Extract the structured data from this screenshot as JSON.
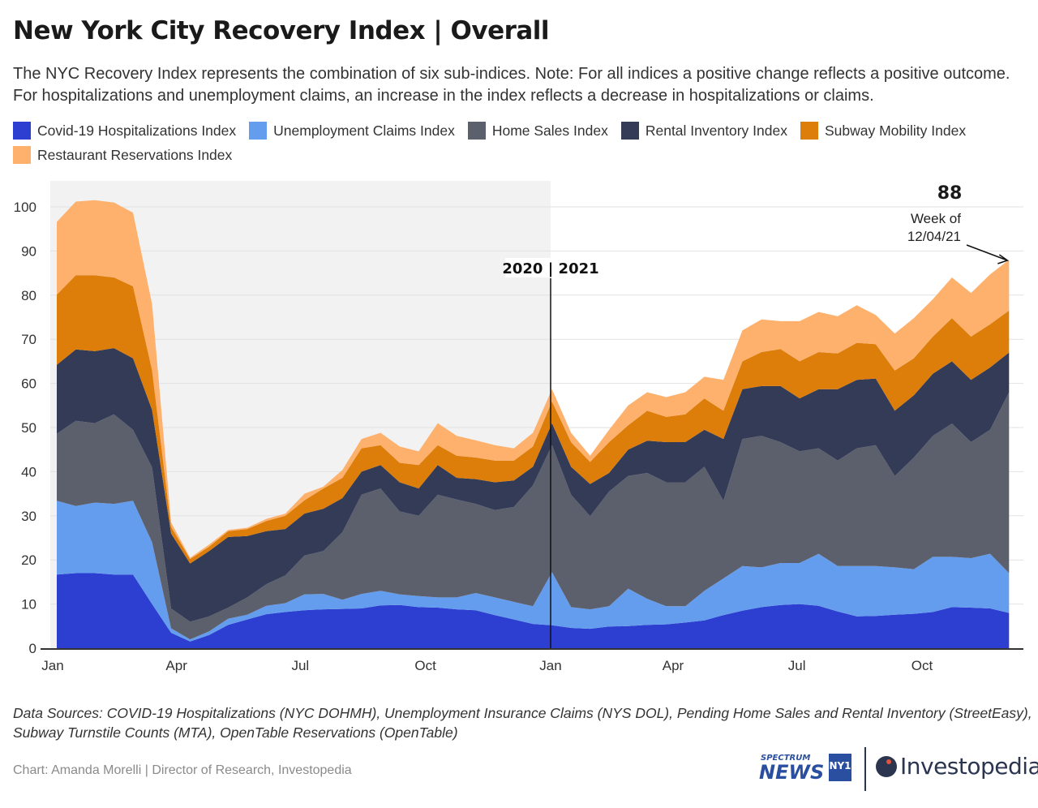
{
  "header": {
    "title": "New York City Recovery Index | Overall",
    "subtitle": "The NYC Recovery Index represents the combination of six sub-indices. Note: For all indices a positive change reflects a positive outcome. For hospitalizations and unemployment claims, an increase in the index reflects a decrease in hospitalizations or claims."
  },
  "legend": [
    {
      "label": "Covid-19 Hospitalizations Index",
      "color": "#2c3fd1"
    },
    {
      "label": "Unemployment Claims Index",
      "color": "#659dee"
    },
    {
      "label": "Home Sales Index",
      "color": "#5c5f6c"
    },
    {
      "label": "Rental Inventory Index",
      "color": "#333b57"
    },
    {
      "label": "Subway Mobility Index",
      "color": "#dd7d0a"
    },
    {
      "label": "Restaurant Reservations Index",
      "color": "#fdb16d"
    }
  ],
  "chart_data": {
    "type": "area",
    "stacked": true,
    "title": "New York City Recovery Index | Overall",
    "xlabel": "",
    "ylabel": "",
    "ylim": [
      0,
      105
    ],
    "y_ticks": [
      "0",
      "10",
      "20",
      "30",
      "40",
      "50",
      "60",
      "70",
      "80",
      "90",
      "100"
    ],
    "x_ticks": [
      {
        "label": "Jan",
        "date": "2020-01-01"
      },
      {
        "label": "Apr",
        "date": "2020-04-01"
      },
      {
        "label": "Jul",
        "date": "2020-07-01"
      },
      {
        "label": "Oct",
        "date": "2020-10-01"
      },
      {
        "label": "Jan",
        "date": "2021-01-01"
      },
      {
        "label": "Apr",
        "date": "2021-04-01"
      },
      {
        "label": "Jul",
        "date": "2021-07-01"
      },
      {
        "label": "Oct",
        "date": "2021-10-01"
      }
    ],
    "grid": "horizontal",
    "legend_position": "top",
    "shaded_period": {
      "start": "2020-01-01",
      "end": "2021-01-01",
      "color": "#f2f2f2"
    },
    "divider": {
      "date": "2021-01-01",
      "label": "2020 | 2021"
    },
    "annotation": {
      "value": "88",
      "text_line1": "Week of",
      "text_line2": "12/04/21",
      "date": "2021-12-04"
    },
    "x": [
      "2020-01-04",
      "2020-01-18",
      "2020-02-01",
      "2020-02-15",
      "2020-02-29",
      "2020-03-14",
      "2020-03-28",
      "2020-04-11",
      "2020-04-25",
      "2020-05-09",
      "2020-05-23",
      "2020-06-06",
      "2020-06-20",
      "2020-07-04",
      "2020-07-18",
      "2020-08-01",
      "2020-08-15",
      "2020-08-29",
      "2020-09-12",
      "2020-09-26",
      "2020-10-10",
      "2020-10-24",
      "2020-11-07",
      "2020-11-21",
      "2020-12-05",
      "2020-12-19",
      "2021-01-02",
      "2021-01-16",
      "2021-01-30",
      "2021-02-13",
      "2021-02-27",
      "2021-03-13",
      "2021-03-27",
      "2021-04-10",
      "2021-04-24",
      "2021-05-08",
      "2021-05-22",
      "2021-06-05",
      "2021-06-19",
      "2021-07-03",
      "2021-07-17",
      "2021-07-31",
      "2021-08-14",
      "2021-08-28",
      "2021-09-11",
      "2021-09-25",
      "2021-10-09",
      "2021-10-23",
      "2021-11-06",
      "2021-11-20",
      "2021-12-04"
    ],
    "series": [
      {
        "name": "Covid-19 Hospitalizations Index",
        "values": [
          16.7,
          17,
          17,
          16.7,
          16.7,
          10,
          3.5,
          1.5,
          3,
          5.3,
          6.5,
          7.7,
          8.2,
          8.6,
          8.8,
          8.9,
          9,
          9.7,
          9.8,
          9.3,
          9.2,
          8.8,
          8.6,
          7.5,
          6.5,
          5.5,
          5.2,
          4.6,
          4.4,
          4.9,
          5,
          5.3,
          5.4,
          5.8,
          6.3,
          7.5,
          8.5,
          9.3,
          9.8,
          10,
          9.6,
          8.3,
          7.2,
          7.3,
          7.6,
          7.8,
          8.2,
          9.3,
          9.2,
          9,
          8
        ]
      },
      {
        "name": "Unemployment Claims Index",
        "values": [
          16.7,
          15.2,
          16,
          16,
          16.7,
          14,
          1,
          0.5,
          0.8,
          1.4,
          1.1,
          1.9,
          2,
          3.6,
          3.5,
          2.1,
          3.3,
          3.3,
          2.4,
          2.5,
          2.3,
          2.7,
          3.9,
          4,
          4,
          4,
          12,
          4.7,
          4.4,
          4.6,
          8.5,
          5.9,
          4.1,
          3.7,
          6.7,
          8.3,
          10.1,
          9,
          9.5,
          9.3,
          11.8,
          10.3,
          11.4,
          11.3,
          10.7,
          10.1,
          12.5,
          11.4,
          11.2,
          12.4,
          9
        ]
      },
      {
        "name": "Home Sales Index",
        "values": [
          15.2,
          19.3,
          18,
          20.3,
          16.1,
          17,
          4.5,
          4,
          3.4,
          2.5,
          3.9,
          4.9,
          6.3,
          8.8,
          9.7,
          15.3,
          22.5,
          23.2,
          18.8,
          18.2,
          23.3,
          22.2,
          20.2,
          19.8,
          21.5,
          27.4,
          28.8,
          25.5,
          21.1,
          26,
          25.5,
          28.5,
          28.1,
          28.1,
          28.1,
          17.6,
          28.8,
          29.8,
          27.4,
          25.3,
          23.9,
          23.9,
          26.7,
          27.4,
          20.7,
          25.3,
          27.4,
          30.2,
          26.3,
          28.1,
          41
        ]
      },
      {
        "name": "Rental Inventory Index",
        "values": [
          15.6,
          16.2,
          16.3,
          15,
          16.2,
          13,
          17,
          13.2,
          14.8,
          16,
          13.9,
          12,
          10.5,
          9.5,
          9.6,
          7.7,
          5.2,
          5.3,
          6.6,
          6.2,
          6.7,
          4.9,
          5.6,
          6.3,
          6,
          4.2,
          5,
          6.3,
          7.3,
          4.2,
          6,
          7.3,
          9.1,
          9.1,
          8.4,
          14,
          11.3,
          11.3,
          12.7,
          12,
          13.4,
          16.2,
          15.5,
          15.1,
          14.8,
          14.1,
          14.1,
          14.1,
          14.1,
          14.1,
          9
        ]
      },
      {
        "name": "Subway Mobility Index",
        "values": [
          15.9,
          16.8,
          17.2,
          16,
          16.3,
          9,
          1.5,
          1,
          1,
          1.3,
          1.6,
          2.3,
          3,
          3,
          4.6,
          4.6,
          5.3,
          4.5,
          4.4,
          5.3,
          4.5,
          5,
          4.9,
          4.9,
          4.5,
          4.6,
          4.9,
          5.6,
          5,
          7,
          5.5,
          6.8,
          5.7,
          6.3,
          7.1,
          6.4,
          6.3,
          7.7,
          8.4,
          8.4,
          8.4,
          8.1,
          8.4,
          7.8,
          9.1,
          8.4,
          8.4,
          9.8,
          9.8,
          9.8,
          9.5
        ]
      },
      {
        "name": "Restaurant Reservations Index",
        "values": [
          16.5,
          16.7,
          17,
          17,
          16.7,
          15,
          1,
          0.3,
          0.5,
          0.3,
          0.3,
          0.5,
          0.5,
          1.5,
          0.4,
          1.8,
          2.1,
          2.8,
          3.7,
          3.1,
          5,
          4.5,
          3.9,
          3.5,
          2.8,
          3.1,
          2.8,
          2.1,
          1.4,
          2.8,
          4.5,
          4.2,
          4.5,
          5,
          4.9,
          7,
          7,
          7.4,
          6.3,
          9.1,
          9.1,
          8.4,
          8.5,
          6.6,
          8.4,
          9.1,
          8.5,
          9.2,
          9.9,
          11.3,
          11.5
        ]
      }
    ]
  },
  "footer": {
    "sources_line1": "Data Sources: COVID-19 Hospitalizations (NYC DOHMH), Unemployment Insurance Claims (NYS DOL), Pending Home Sales and Rental Inventory (StreetEasy),",
    "sources_line2": "Subway Turnstile Counts (MTA), OpenTable Reservations (OpenTable)",
    "credit": "Chart: Amanda Morelli | Director of Research, Investopedia",
    "logo1_top": "SPECTRUM",
    "logo1_main": "NEWS",
    "logo1_badge": "NY1",
    "logo2": "Investopedia"
  }
}
